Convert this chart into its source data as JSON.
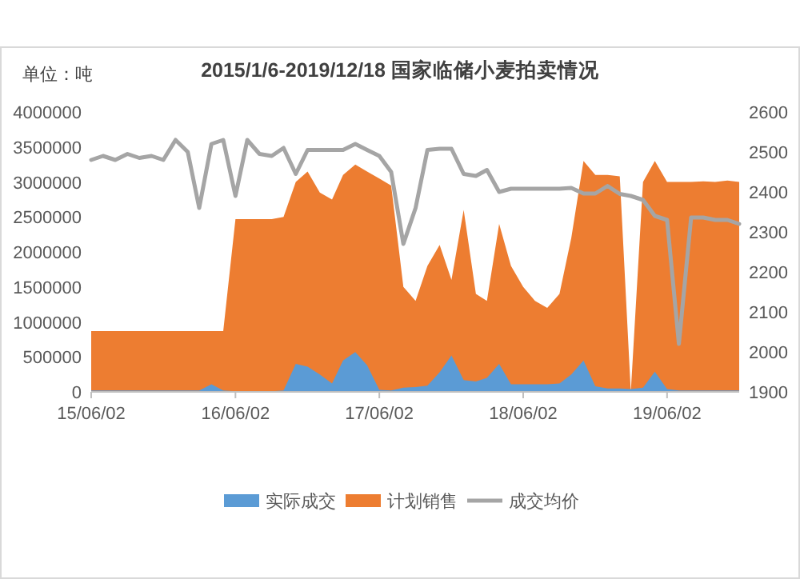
{
  "chart_data": {
    "type": "area",
    "title": "2015/1/6-2019/12/18 国家临储小麦拍卖情况",
    "ylabel": "单位：吨",
    "x": [
      "2015-06-02",
      "2015-07-02",
      "2015-08-02",
      "2015-09-02",
      "2015-10-02",
      "2015-11-02",
      "2015-12-02",
      "2016-01-02",
      "2016-02-02",
      "2016-03-02",
      "2016-04-02",
      "2016-05-02",
      "2016-06-02",
      "2016-07-02",
      "2016-08-02",
      "2016-09-02",
      "2016-10-02",
      "2016-11-02",
      "2016-12-02",
      "2017-01-02",
      "2017-02-02",
      "2017-03-02",
      "2017-04-02",
      "2017-05-02",
      "2017-06-02",
      "2017-07-02",
      "2017-08-02",
      "2017-09-02",
      "2017-10-02",
      "2017-11-02",
      "2017-12-02",
      "2018-01-02",
      "2018-02-02",
      "2018-03-02",
      "2018-04-02",
      "2018-05-02",
      "2018-06-02",
      "2018-07-02",
      "2018-08-02",
      "2018-09-02",
      "2018-10-02",
      "2018-11-02",
      "2018-12-02",
      "2019-01-02",
      "2019-02-02",
      "2019-03-02",
      "2019-04-02",
      "2019-05-02",
      "2019-06-02",
      "2019-07-02",
      "2019-08-02",
      "2019-09-02",
      "2019-10-02",
      "2019-11-02",
      "2019-12-02"
    ],
    "xlim": [
      "2015-06-02",
      "2019-12-02"
    ],
    "xticks": [
      {
        "value": "2015-06-02",
        "label": "15/06/02"
      },
      {
        "value": "2016-06-02",
        "label": "16/06/02"
      },
      {
        "value": "2017-06-02",
        "label": "17/06/02"
      },
      {
        "value": "2018-06-02",
        "label": "18/06/02"
      },
      {
        "value": "2019-06-02",
        "label": "19/06/02"
      }
    ],
    "ylim": [
      0,
      4000000
    ],
    "yticks": [
      0,
      500000,
      1000000,
      1500000,
      2000000,
      2500000,
      3000000,
      3500000,
      4000000
    ],
    "y2lim": [
      1900,
      2600
    ],
    "y2ticks": [
      1900,
      2000,
      2100,
      2200,
      2300,
      2400,
      2500,
      2600
    ],
    "legend": "bottom",
    "series": [
      {
        "name": "计划销售",
        "color": "#ed7d31",
        "values": [
          870000,
          870000,
          870000,
          870000,
          870000,
          870000,
          870000,
          870000,
          870000,
          870000,
          870000,
          870000,
          2470000,
          2470000,
          2470000,
          2470000,
          2500000,
          3000000,
          3150000,
          2850000,
          2750000,
          3100000,
          3250000,
          3150000,
          3050000,
          2950000,
          1500000,
          1300000,
          1800000,
          2100000,
          1600000,
          2600000,
          1400000,
          1300000,
          2400000,
          1800000,
          1500000,
          1300000,
          1200000,
          1400000,
          2200000,
          3300000,
          3100000,
          3100000,
          3080000,
          0,
          3000000,
          3300000,
          3000000,
          3000000,
          3000000,
          3010000,
          3000000,
          3020000,
          3000000
        ]
      },
      {
        "name": "实际成交",
        "color": "#5b9bd5",
        "values": [
          20000,
          20000,
          20000,
          20000,
          20000,
          20000,
          20000,
          20000,
          20000,
          20000,
          110000,
          20000,
          10000,
          10000,
          10000,
          10000,
          20000,
          400000,
          360000,
          250000,
          120000,
          450000,
          570000,
          380000,
          30000,
          20000,
          60000,
          70000,
          90000,
          280000,
          520000,
          170000,
          150000,
          200000,
          400000,
          110000,
          110000,
          110000,
          110000,
          120000,
          250000,
          450000,
          80000,
          50000,
          50000,
          40000,
          60000,
          290000,
          40000,
          20000,
          20000,
          20000,
          20000,
          20000,
          20000
        ]
      },
      {
        "name": "成交均价",
        "type": "line",
        "axis": "y2",
        "color": "#a5a5a5",
        "values": [
          2480,
          2490,
          2480,
          2495,
          2485,
          2490,
          2480,
          2530,
          2500,
          2360,
          2520,
          2530,
          2390,
          2530,
          2495,
          2490,
          2510,
          2445,
          2505,
          2505,
          2505,
          2505,
          2520,
          2505,
          2490,
          2450,
          2270,
          2360,
          2505,
          2508,
          2508,
          2445,
          2440,
          2455,
          2400,
          2408,
          2408,
          2408,
          2408,
          2408,
          2410,
          2396,
          2396,
          2415,
          2395,
          2390,
          2380,
          2340,
          2330,
          2020,
          2336,
          2336,
          2330,
          2330,
          2320
        ]
      }
    ]
  }
}
